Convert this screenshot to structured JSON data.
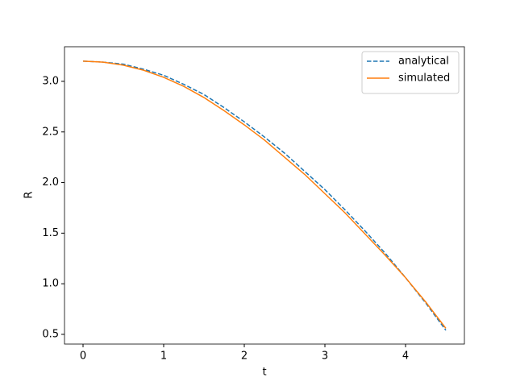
{
  "chart_data": {
    "type": "line",
    "xlabel": "t",
    "ylabel": "R",
    "x": [
      0,
      0.25,
      0.5,
      0.75,
      1,
      1.25,
      1.5,
      1.75,
      2,
      2.25,
      2.5,
      2.75,
      3,
      3.25,
      3.5,
      3.75,
      4,
      4.25,
      4.5
    ],
    "series": [
      {
        "name": "analytical",
        "color": "#1f77b4",
        "linestyle": "dashed",
        "values": [
          3.2,
          3.19,
          3.17,
          3.12,
          3.06,
          2.97,
          2.87,
          2.74,
          2.6,
          2.45,
          2.29,
          2.11,
          1.93,
          1.73,
          1.52,
          1.3,
          1.06,
          0.81,
          0.54
        ]
      },
      {
        "name": "simulated",
        "color": "#ff7f0e",
        "linestyle": "solid",
        "values": [
          3.2,
          3.19,
          3.16,
          3.11,
          3.04,
          2.95,
          2.84,
          2.71,
          2.57,
          2.42,
          2.25,
          2.08,
          1.89,
          1.7,
          1.49,
          1.28,
          1.06,
          0.82,
          0.56
        ]
      }
    ],
    "xlim": [
      -0.23,
      4.73
    ],
    "ylim": [
      0.404,
      3.342
    ],
    "xticks": [
      0,
      1,
      2,
      3,
      4
    ],
    "yticks": [
      0.5,
      {
        "value": 1,
        "label": "1.0"
      },
      1.5,
      {
        "value": 2,
        "label": "2.0"
      },
      2.5,
      {
        "value": 3,
        "label": "3.0"
      }
    ],
    "grid": false,
    "legend": "upper right"
  }
}
